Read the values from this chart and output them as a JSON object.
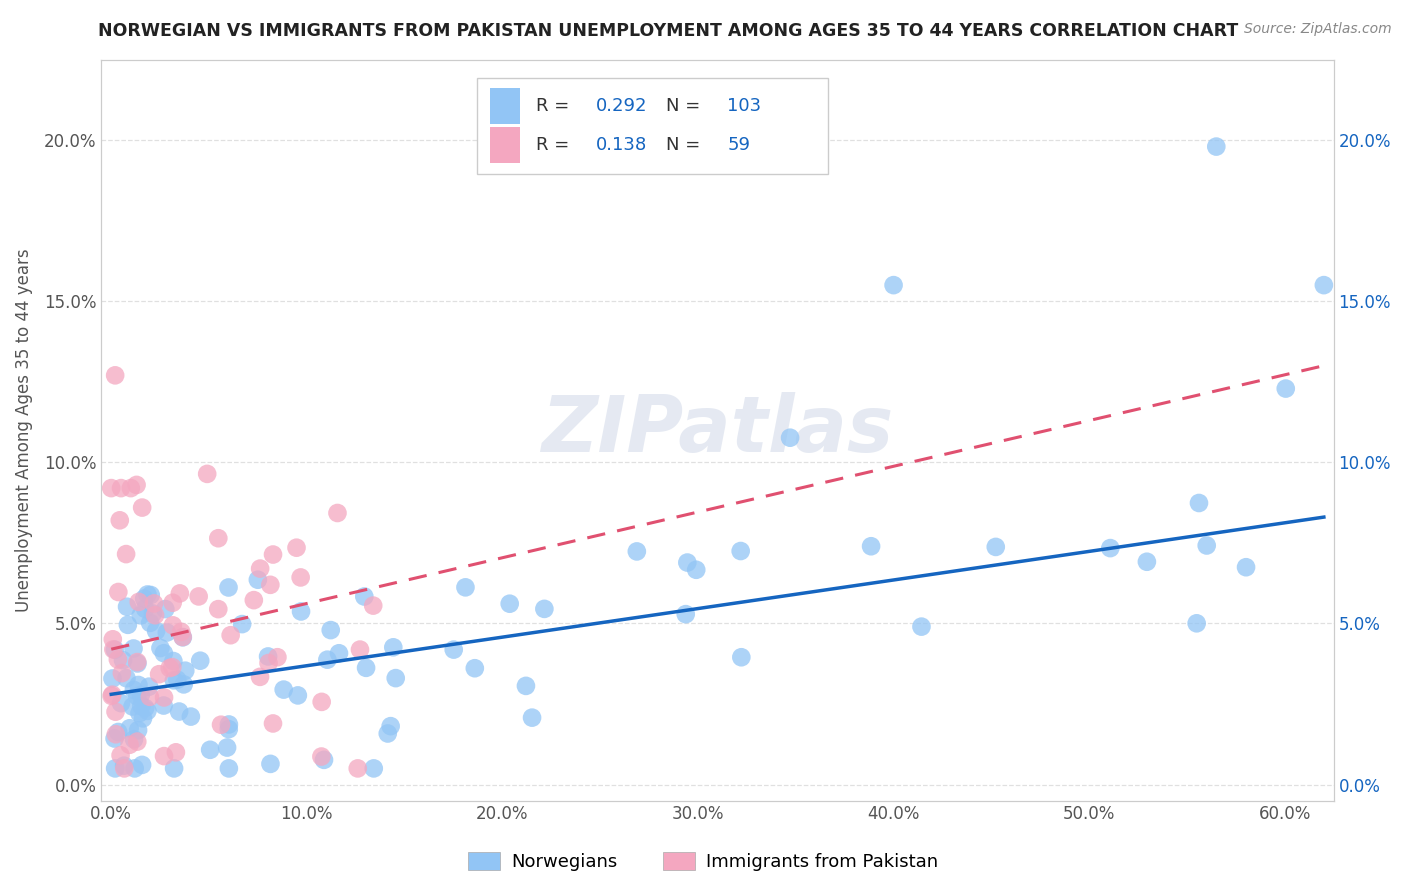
{
  "title": "NORWEGIAN VS IMMIGRANTS FROM PAKISTAN UNEMPLOYMENT AMONG AGES 35 TO 44 YEARS CORRELATION CHART",
  "source": "Source: ZipAtlas.com",
  "ylabel": "Unemployment Among Ages 35 to 44 years",
  "xlim": [
    -0.005,
    0.625
  ],
  "ylim": [
    -0.005,
    0.225
  ],
  "xticks": [
    0.0,
    0.1,
    0.2,
    0.3,
    0.4,
    0.5,
    0.6
  ],
  "xticklabels": [
    "0.0%",
    "10.0%",
    "20.0%",
    "30.0%",
    "40.0%",
    "50.0%",
    "60.0%"
  ],
  "yticks": [
    0.0,
    0.05,
    0.1,
    0.15,
    0.2
  ],
  "yticklabels": [
    "0.0%",
    "5.0%",
    "10.0%",
    "15.0%",
    "20.0%"
  ],
  "norwegian_color": "#92c5f5",
  "pakistan_color": "#f4a7c0",
  "norwegian_line_color": "#1565c0",
  "pakistan_line_color": "#e05070",
  "R_norwegian": 0.292,
  "N_norwegian": 103,
  "R_pakistan": 0.138,
  "N_pakistan": 59,
  "legend_label_norwegian": "Norwegians",
  "legend_label_pakistan": "Immigrants from Pakistan",
  "watermark": "ZIPatlas",
  "background_color": "#ffffff",
  "grid_color": "#dddddd",
  "title_color": "#222222",
  "label_color": "#555555",
  "stat_color": "#1565c0",
  "tick_color": "#555555",
  "norw_line_start_y": 0.028,
  "norw_line_end_y": 0.083,
  "pak_line_start_y": 0.042,
  "pak_line_end_y": 0.13
}
